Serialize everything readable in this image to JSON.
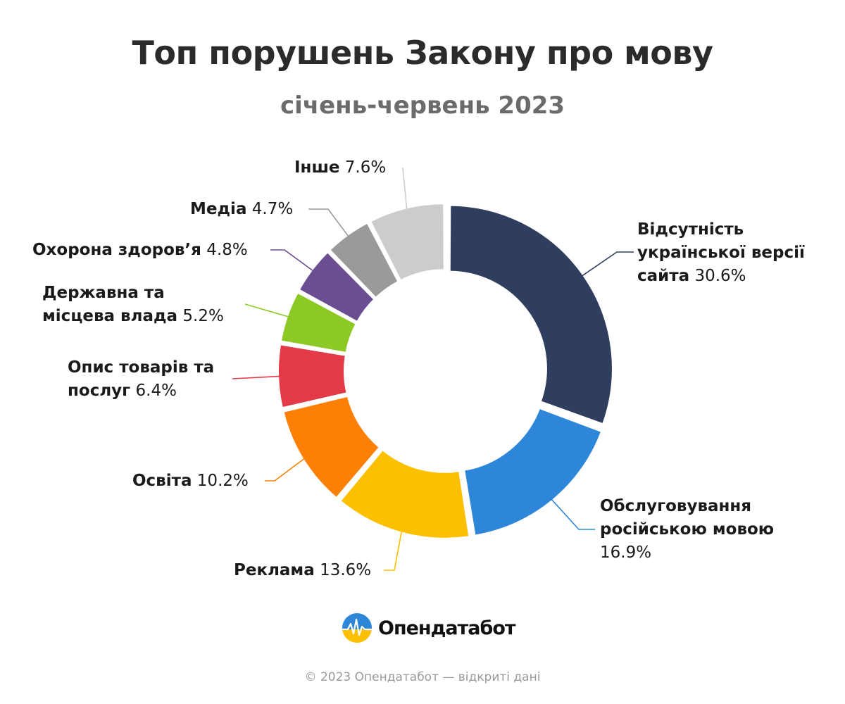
{
  "chart_data": {
    "type": "pie",
    "title": "Топ порушень Закону про мову",
    "subtitle": "січень-червень 2023",
    "unit": "%",
    "slices": [
      {
        "label": "Відсутність української версії сайта",
        "value": 30.6,
        "value_text": "30.6%",
        "color": "#2f3e5e",
        "label_lines": [
          "Відсутність",
          "української версії",
          "сайта"
        ]
      },
      {
        "label": "Обслуговування російською мовою",
        "value": 16.9,
        "value_text": "16.9%",
        "color": "#2e86d8",
        "label_lines": [
          "Обслуговування",
          "російською мовою"
        ]
      },
      {
        "label": "Реклама",
        "value": 13.6,
        "value_text": "13.6%",
        "color": "#fdc000",
        "label_lines": [
          "Реклама"
        ]
      },
      {
        "label": "Освіта",
        "value": 10.2,
        "value_text": "10.2%",
        "color": "#fb8005",
        "label_lines": [
          "Освіта"
        ]
      },
      {
        "label": "Опис товарів та послуг",
        "value": 6.4,
        "value_text": "6.4%",
        "color": "#e43a47",
        "label_lines": [
          "Опис товарів та",
          "послуг"
        ]
      },
      {
        "label": "Державна та місцева влада",
        "value": 5.2,
        "value_text": "5.2%",
        "color": "#8dc925",
        "label_lines": [
          "Державна та",
          "місцева влада"
        ]
      },
      {
        "label": "Охорона здоров’я",
        "value": 4.8,
        "value_text": "4.8%",
        "color": "#6b4d92",
        "label_lines": [
          "Охорона здоров’я"
        ]
      },
      {
        "label": "Медіа",
        "value": 4.7,
        "value_text": "4.7%",
        "color": "#9a9a9a",
        "label_lines": [
          "Медіа"
        ]
      },
      {
        "label": "Інше",
        "value": 7.6,
        "value_text": "7.6%",
        "color": "#cccccc",
        "label_lines": [
          "Інше"
        ]
      }
    ]
  },
  "brand": {
    "name": "Опендатабот",
    "logo_colors": [
      "#2e86d8",
      "#fdc000"
    ]
  },
  "footer": "© 2023 Опендатабот — відкриті дані"
}
